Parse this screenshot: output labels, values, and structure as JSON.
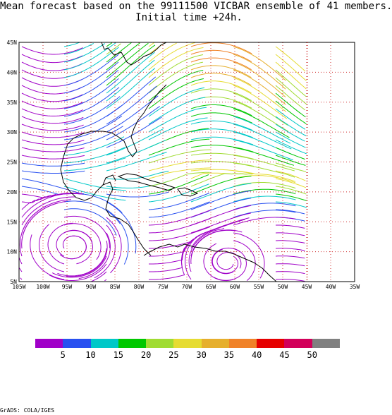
{
  "figure": {
    "title_line1": "Mean forecast based on the 99111500 VICBAR ensemble of 41 members.",
    "title_line2": "Initial time +24h.",
    "footer": "GrADS: COLA/IGES"
  },
  "map": {
    "lon_range": [
      -105,
      -35
    ],
    "lat_range": [
      5,
      45
    ],
    "lon_ticks": [
      "105W",
      "100W",
      "95W",
      "90W",
      "85W",
      "80W",
      "75W",
      "70W",
      "65W",
      "60W",
      "55W",
      "50W",
      "45W",
      "40W",
      "35W"
    ],
    "lat_ticks": [
      "5N",
      "10N",
      "15N",
      "20N",
      "25N",
      "30N",
      "35N",
      "40N",
      "45N"
    ],
    "data_right_lon": -45,
    "grid": "dotted",
    "grid_color": "#d03030",
    "field": "streamlines colored by wind speed"
  },
  "colorbar": {
    "colors": [
      "#a000c8",
      "#2850f0",
      "#00c8c8",
      "#00c800",
      "#a0dc32",
      "#e6dc32",
      "#e6af2d",
      "#f08228",
      "#e60000",
      "#d2005a",
      "#808080"
    ],
    "labels": [
      "5",
      "10",
      "15",
      "20",
      "25",
      "30",
      "35",
      "40",
      "45",
      "50"
    ]
  }
}
